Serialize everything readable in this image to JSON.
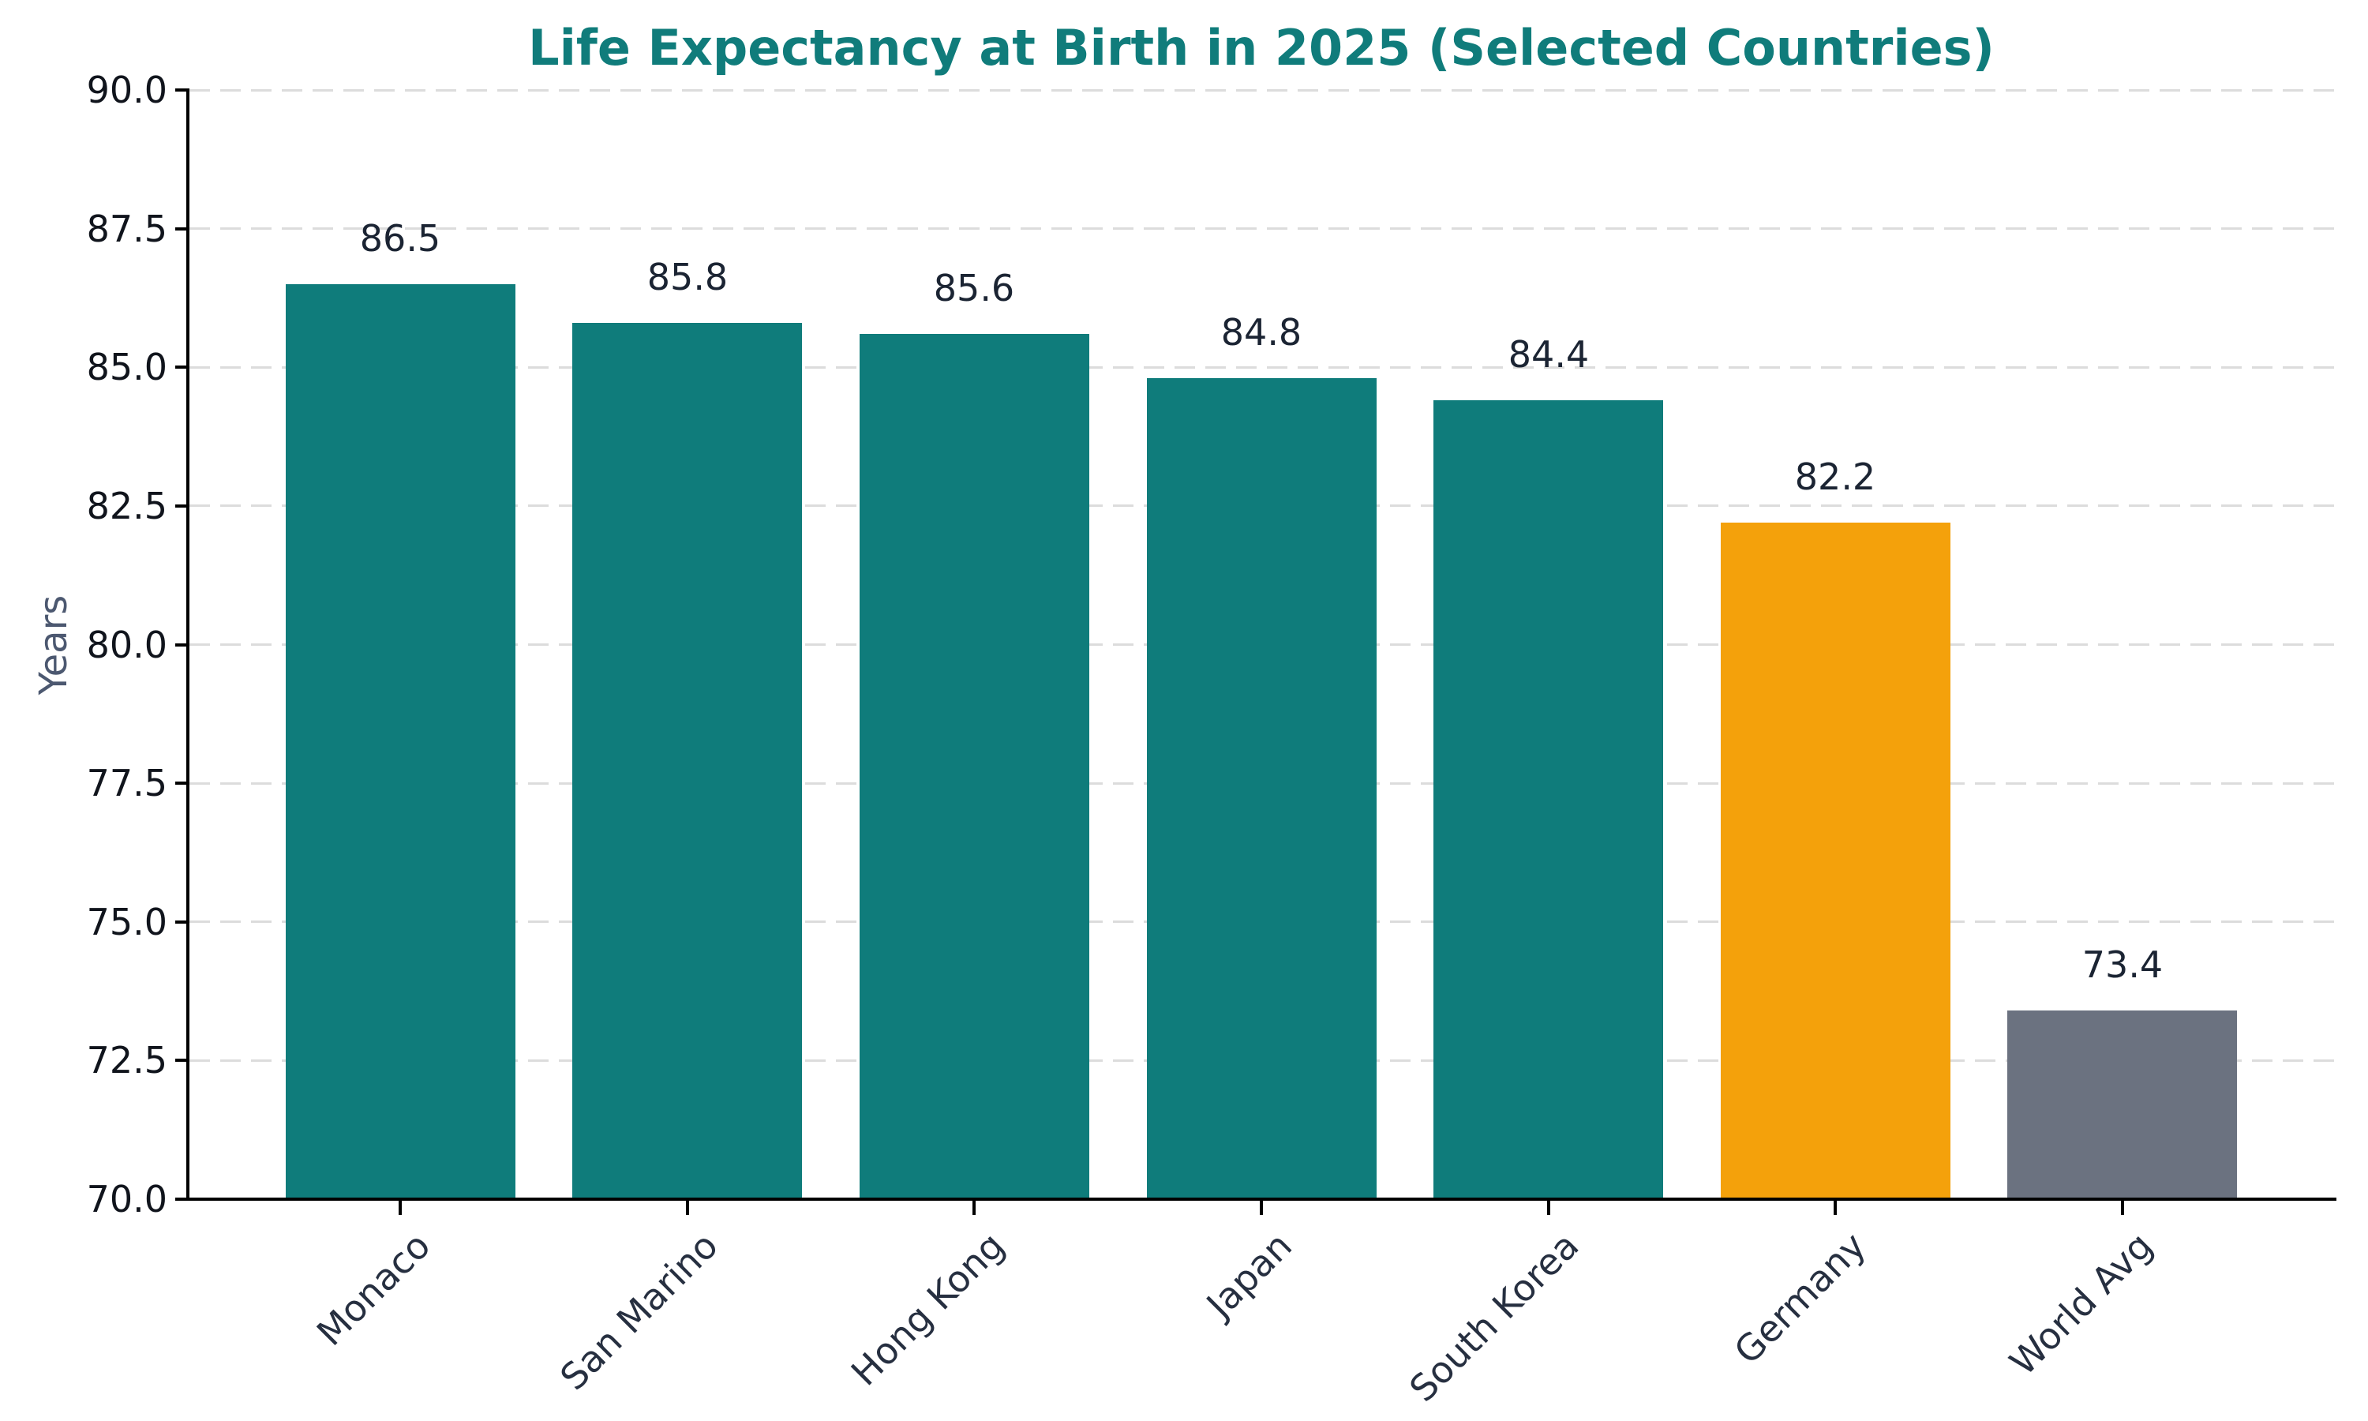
{
  "chart_data": {
    "type": "bar",
    "title": "Life Expectancy at Birth in 2025 (Selected Countries)",
    "ylabel": "Years",
    "xlabel": "",
    "categories": [
      "Monaco",
      "San Marino",
      "Hong Kong",
      "Japan",
      "South Korea",
      "Germany",
      "World Avg"
    ],
    "values": [
      86.5,
      85.8,
      85.6,
      84.8,
      84.4,
      82.2,
      73.4
    ],
    "value_labels": [
      "86.5",
      "85.8",
      "85.6",
      "84.8",
      "84.4",
      "82.2",
      "73.4"
    ],
    "bar_colors": [
      "#0F7C7B",
      "#0F7C7B",
      "#0F7C7B",
      "#0F7C7B",
      "#0F7C7B",
      "#F4A10B",
      "#6B7280"
    ],
    "ylim": [
      70,
      90
    ],
    "yticks": [
      70,
      72.5,
      75,
      77.5,
      80,
      82.5,
      85,
      87.5,
      90
    ],
    "ytick_labels": [
      "70.0",
      "72.5",
      "75.0",
      "77.5",
      "80.0",
      "82.5",
      "85.0",
      "87.5",
      "90.0"
    ],
    "grid": "horizontal-dashed",
    "legend": "none"
  },
  "style": {
    "title_color": "#107C7B",
    "teal": "#0F7C7B",
    "orange": "#F4A10B",
    "gray": "#6B7280",
    "background": "#FFFFFF",
    "axis_color": "#000000",
    "grid_color": "#DCDCDC",
    "ytick_label_color": "#10141C",
    "xtick_label_color": "#262F40",
    "value_label_color": "#1B2433",
    "ylabel_color": "#4C5870"
  }
}
